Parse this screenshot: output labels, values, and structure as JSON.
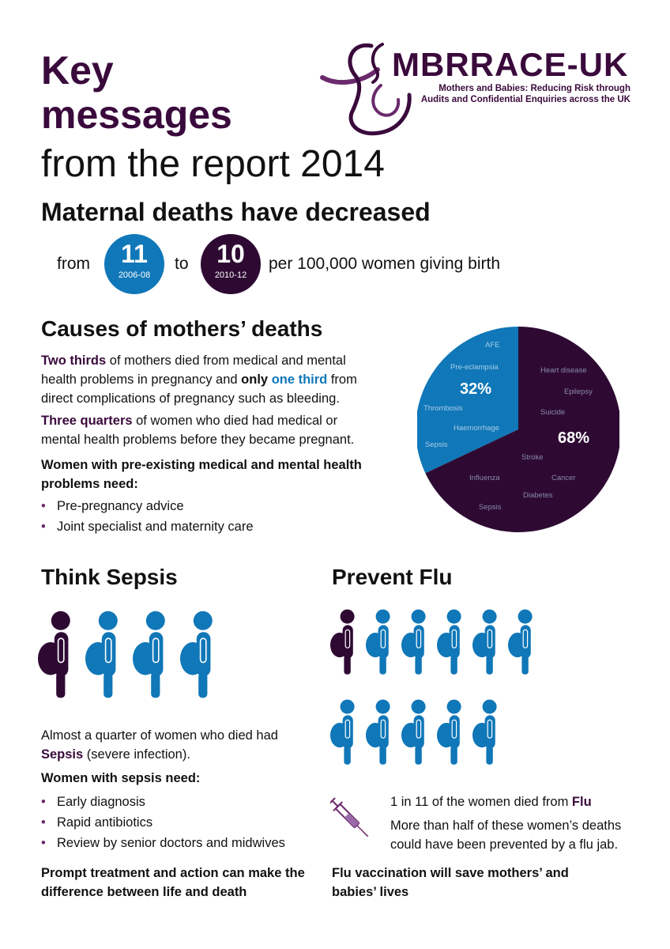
{
  "title": {
    "line1": "Key",
    "line2": "messages",
    "line3": "from the report 2014"
  },
  "logo": {
    "name": "MBRRACE-UK",
    "tagline1": "Mothers and Babies: Reducing Risk through",
    "tagline2": "Audits and Confidential Enquiries across the UK"
  },
  "deaths": {
    "heading": "Maternal deaths have decreased",
    "from_label": "from",
    "to_label": "to",
    "from_value": "11",
    "from_years": "2006-08",
    "to_value": "10",
    "to_years": "2010-12",
    "suffix": "per 100,000 women giving birth"
  },
  "causes": {
    "heading": "Causes of mothers’ deaths",
    "p1_a": "Two thirds",
    "p1_b": " of mothers died from medical and mental health problems in pregnancy and ",
    "p1_c": "only",
    "p1_d": " ",
    "p1_e": "one third",
    "p1_f": " from direct complications of pregnancy such as bleeding.",
    "p2_a": "Three quarters",
    "p2_b": " of women who died had medical or mental health problems before they became pregnant.",
    "need_heading": "Women with pre-existing medical and mental health problems need:",
    "bullets": [
      "Pre-pregnancy advice",
      "Joint specialist and maternity care"
    ]
  },
  "chart_data": {
    "type": "pie",
    "slices": [
      {
        "name": "Direct complications",
        "value": 32,
        "label": "32%",
        "color": "#1077b8",
        "items": [
          "AFE",
          "Pre-eclampsia",
          "Thrombosis",
          "Haemorrhage",
          "Sepsis"
        ]
      },
      {
        "name": "Medical and mental health",
        "value": 68,
        "label": "68%",
        "color": "#2e0a33",
        "items": [
          "Heart disease",
          "Epilepsy",
          "Suicide",
          "Stroke",
          "Cancer",
          "Influenza",
          "Diabetes",
          "Sepsis"
        ]
      }
    ]
  },
  "sepsis": {
    "heading": "Think Sepsis",
    "p1_a": "Almost a quarter of women who died had ",
    "p1_b": "Sepsis",
    "p1_c": " (severe infection).",
    "need_heading": "Women with sepsis need:",
    "bullets": [
      "Early diagnosis",
      "Rapid antibiotics",
      "Review by senior doctors and midwives"
    ],
    "footer": "Prompt treatment and action can make the difference between life and death",
    "figures_highlighted": 1,
    "figures_total": 4
  },
  "flu": {
    "heading": "Prevent Flu",
    "p1_a": "1 in 11 of the women died from ",
    "p1_b": "Flu",
    "p2": "More than half of these women’s deaths could have been prevented by a flu jab.",
    "footer": "Flu vaccination will save mothers’ and babies’ lives",
    "figures_highlighted": 1,
    "figures_total": 11
  },
  "colors": {
    "purple": "#2e0a33",
    "blue": "#1077b8"
  }
}
